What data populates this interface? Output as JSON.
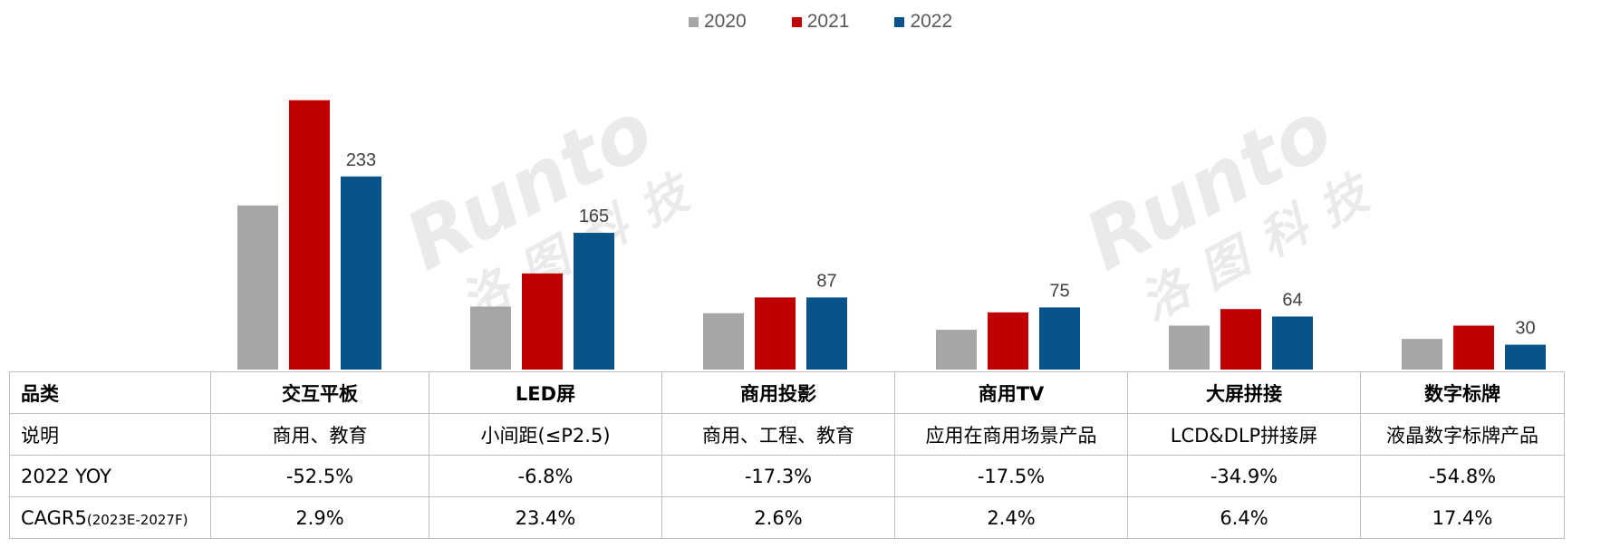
{
  "colors": {
    "2020": "#a6a6a6",
    "2021": "#c00000",
    "2022": "#08548a"
  },
  "watermark": {
    "latin": "Runto",
    "cjk": "洛图科技"
  },
  "chart_data": {
    "type": "bar",
    "categories": [
      "交互平板",
      "LED屏",
      "商用投影",
      "商用TV",
      "大屏拼接",
      "数字标牌"
    ],
    "series": [
      {
        "name": "2020",
        "values": [
          198,
          76,
          68,
          48,
          53,
          37
        ]
      },
      {
        "name": "2021",
        "values": [
          325,
          116,
          87,
          69,
          73,
          53
        ]
      },
      {
        "name": "2022",
        "values": [
          233,
          165,
          87,
          75,
          64,
          30
        ]
      }
    ],
    "data_labels": {
      "2022": [
        "233",
        "165",
        "87",
        "75",
        "64",
        "30"
      ]
    },
    "legend_position": "top-center",
    "grid": false,
    "ylim": [
      0,
      340
    ]
  },
  "table": {
    "header_label": "品类",
    "categories": [
      "交互平板",
      "LED屏",
      "商用投影",
      "商用TV",
      "大屏拼接",
      "数字标牌"
    ],
    "rows": [
      {
        "label": "说明",
        "cells": [
          "商用、教育",
          "小间距(≤P2.5)",
          "商用、工程、教育",
          "应用在商用场景产品",
          "LCD&DLP拼接屏",
          "液晶数字标牌产品"
        ]
      },
      {
        "label": "2022 YOY",
        "cells": [
          "-52.5%",
          "-6.8%",
          "-17.3%",
          "-17.5%",
          "-34.9%",
          "-54.8%"
        ]
      },
      {
        "label": "CAGR5",
        "label_sub": "(2023E-2027F)",
        "cells": [
          "2.9%",
          "23.4%",
          "2.6%",
          "2.4%",
          "6.4%",
          "17.4%"
        ]
      }
    ]
  }
}
